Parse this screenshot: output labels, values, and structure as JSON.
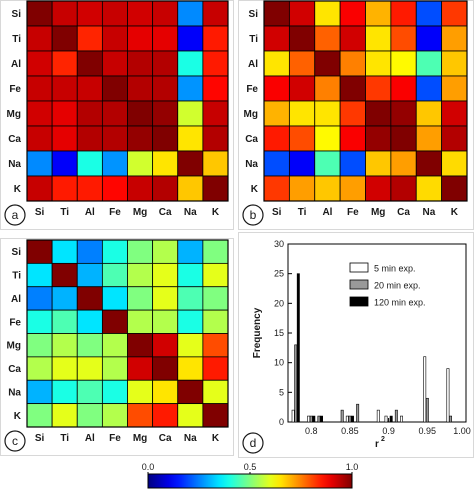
{
  "elements": [
    "Si",
    "Ti",
    "Al",
    "Fe",
    "Mg",
    "Ca",
    "Na",
    "K"
  ],
  "chart_data": [
    {
      "type": "heatmap",
      "panel_label": "a",
      "row_labels": [
        "Si",
        "Ti",
        "Al",
        "Fe",
        "Mg",
        "Ca",
        "Na",
        "K"
      ],
      "col_labels": [
        "Si",
        "Ti",
        "Al",
        "Fe",
        "Mg",
        "Ca",
        "Na",
        "K"
      ],
      "colorbar": {
        "min": 0.0,
        "max": 1.0
      },
      "values": [
        [
          1.0,
          0.93,
          0.92,
          0.93,
          0.92,
          0.93,
          0.26,
          0.93
        ],
        [
          0.93,
          1.0,
          0.84,
          0.93,
          0.9,
          0.9,
          0.12,
          0.85
        ],
        [
          0.92,
          0.84,
          1.0,
          0.93,
          0.95,
          0.95,
          0.4,
          0.85
        ],
        [
          0.93,
          0.93,
          0.93,
          1.0,
          0.95,
          0.95,
          0.27,
          0.87
        ],
        [
          0.92,
          0.9,
          0.95,
          0.95,
          1.0,
          0.98,
          0.58,
          0.93
        ],
        [
          0.93,
          0.9,
          0.95,
          0.95,
          0.98,
          1.0,
          0.65,
          0.95
        ],
        [
          0.26,
          0.12,
          0.4,
          0.27,
          0.58,
          0.65,
          1.0,
          0.68
        ],
        [
          0.93,
          0.85,
          0.85,
          0.87,
          0.93,
          0.95,
          0.68,
          1.0
        ]
      ]
    },
    {
      "type": "heatmap",
      "panel_label": "b",
      "row_labels": [
        "Si",
        "Ti",
        "Al",
        "Fe",
        "Mg",
        "Ca",
        "Na",
        "K"
      ],
      "col_labels": [
        "Si",
        "Ti",
        "Al",
        "Fe",
        "Mg",
        "Ca",
        "Na",
        "K"
      ],
      "colorbar": {
        "min": 0.0,
        "max": 1.0
      },
      "values": [
        [
          1.0,
          0.92,
          0.65,
          0.88,
          0.7,
          0.85,
          0.2,
          0.82
        ],
        [
          0.92,
          1.0,
          0.78,
          0.92,
          0.65,
          0.8,
          0.12,
          0.72
        ],
        [
          0.65,
          0.78,
          1.0,
          0.75,
          0.65,
          0.63,
          0.45,
          0.68
        ],
        [
          0.88,
          0.92,
          0.75,
          1.0,
          0.82,
          0.88,
          0.2,
          0.72
        ],
        [
          0.7,
          0.65,
          0.65,
          0.82,
          1.0,
          0.98,
          0.68,
          0.92
        ],
        [
          0.85,
          0.8,
          0.63,
          0.88,
          0.98,
          1.0,
          0.72,
          0.95
        ],
        [
          0.2,
          0.12,
          0.45,
          0.2,
          0.68,
          0.72,
          1.0,
          0.66
        ],
        [
          0.82,
          0.72,
          0.68,
          0.72,
          0.92,
          0.95,
          0.66,
          1.0
        ]
      ]
    },
    {
      "type": "heatmap",
      "panel_label": "c",
      "row_labels": [
        "Si",
        "Ti",
        "Al",
        "Fe",
        "Mg",
        "Ca",
        "Na",
        "K"
      ],
      "col_labels": [
        "Si",
        "Ti",
        "Al",
        "Fe",
        "Mg",
        "Ca",
        "Na",
        "K"
      ],
      "colorbar": {
        "min": 0.0,
        "max": 1.0
      },
      "values": [
        [
          1.0,
          0.35,
          0.25,
          0.4,
          0.5,
          0.55,
          0.3,
          0.5
        ],
        [
          0.35,
          1.0,
          0.3,
          0.45,
          0.55,
          0.6,
          0.4,
          0.6
        ],
        [
          0.25,
          0.3,
          1.0,
          0.35,
          0.5,
          0.6,
          0.45,
          0.5
        ],
        [
          0.4,
          0.45,
          0.35,
          1.0,
          0.55,
          0.55,
          0.4,
          0.55
        ],
        [
          0.5,
          0.55,
          0.5,
          0.55,
          1.0,
          0.92,
          0.6,
          0.8
        ],
        [
          0.55,
          0.6,
          0.6,
          0.55,
          0.92,
          1.0,
          0.65,
          0.85
        ],
        [
          0.3,
          0.4,
          0.45,
          0.4,
          0.6,
          0.65,
          1.0,
          0.6
        ],
        [
          0.5,
          0.6,
          0.5,
          0.55,
          0.8,
          0.85,
          0.6,
          1.0
        ]
      ]
    },
    {
      "type": "bar",
      "panel_label": "d",
      "xlabel": "r",
      "xlabel_sup": "2",
      "ylabel": "Frequency",
      "xlim": [
        0.77,
        1.0
      ],
      "ylim": [
        0,
        30
      ],
      "xticks": [
        {
          "v": 0.8,
          "label": "0.8"
        },
        {
          "v": 0.85,
          "label": "0.85"
        },
        {
          "v": 0.9,
          "label": "0.9"
        },
        {
          "v": 0.95,
          "label": "0.95"
        },
        {
          "v": 1.0,
          "label": "1.00"
        }
      ],
      "yticks": [
        0,
        5,
        10,
        15,
        20,
        25,
        30
      ],
      "bin_centers": [
        0.78,
        0.79,
        0.8,
        0.81,
        0.82,
        0.83,
        0.84,
        0.85,
        0.86,
        0.87,
        0.88,
        0.89,
        0.9,
        0.91,
        0.92,
        0.93,
        0.94,
        0.95,
        0.96,
        0.97,
        0.98,
        0.99
      ],
      "series": [
        {
          "name": "5 min exp.",
          "color": "#ffffff",
          "values": [
            2,
            0,
            1,
            0,
            0,
            0,
            0,
            1,
            0,
            0,
            0,
            2,
            1,
            0,
            1,
            0,
            0,
            11,
            0,
            0,
            9,
            0
          ]
        },
        {
          "name": "20 min exp.",
          "color": "#999999",
          "values": [
            13,
            0,
            1,
            1,
            0,
            0,
            2,
            1,
            3,
            0,
            0,
            0,
            0,
            2,
            0,
            0,
            0,
            4,
            0,
            0,
            1,
            0
          ]
        },
        {
          "name": "120 min exp.",
          "color": "#000000",
          "values": [
            25,
            0,
            1,
            1,
            0,
            0,
            0,
            1,
            0,
            0,
            0,
            0,
            1,
            0,
            0,
            0,
            0,
            0,
            0,
            0,
            0,
            0
          ]
        }
      ]
    }
  ],
  "colorbar": {
    "min_label": "0.0",
    "mid_label": "0.5",
    "max_label": "1.0"
  }
}
